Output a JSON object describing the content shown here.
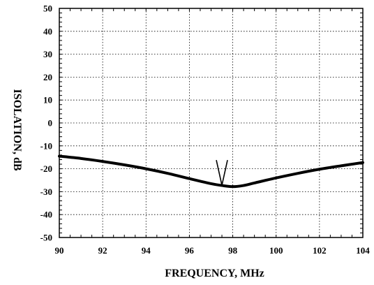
{
  "chart_data": {
    "type": "line",
    "title": "",
    "xlabel": "FREQUENCY, MHz",
    "ylabel": "ISOLATION, dB",
    "xlim": [
      90,
      104
    ],
    "ylim": [
      -50,
      50
    ],
    "x_ticks": [
      "90",
      "92",
      "94",
      "96",
      "98",
      "100",
      "102",
      "104"
    ],
    "y_ticks": [
      "50",
      "40",
      "30",
      "20",
      "10",
      "0",
      "-10",
      "-20",
      "-30",
      "-40",
      "-50"
    ],
    "grid": true,
    "series": [
      {
        "x": [
          90,
          91,
          92,
          93,
          94,
          95,
          96,
          97,
          97.5,
          98,
          98.5,
          99,
          100,
          101,
          102,
          103,
          104
        ],
        "y": [
          -14.5,
          -15.5,
          -16.8,
          -18.3,
          -20,
          -22,
          -24.3,
          -26.5,
          -27.3,
          -27.8,
          -27.3,
          -26.2,
          -24,
          -22,
          -20.2,
          -18.7,
          -17.3
        ]
      }
    ],
    "annotations": [
      {
        "type": "arrow-marker",
        "x": 97.5,
        "y": -27.8
      }
    ]
  }
}
